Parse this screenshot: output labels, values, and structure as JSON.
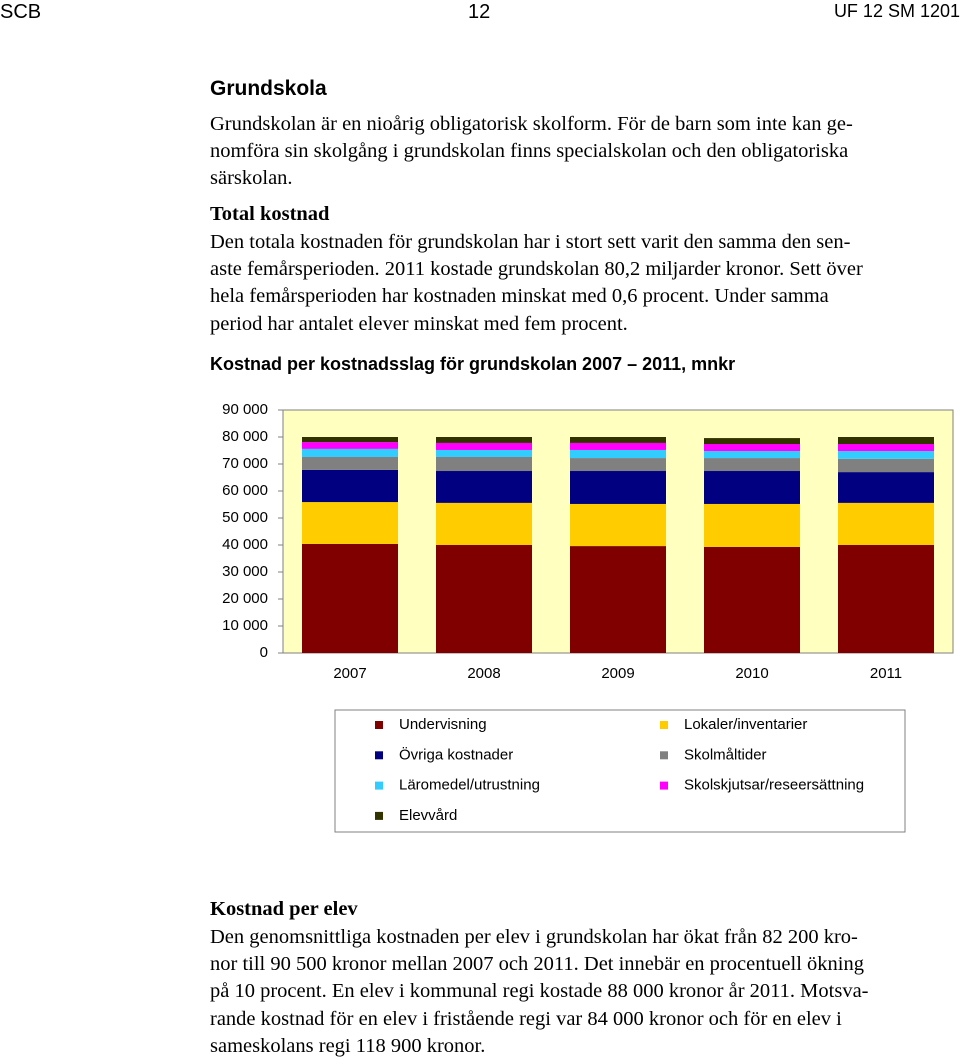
{
  "header": {
    "left": "SCB",
    "center": "12",
    "right": "UF 12 SM 1201"
  },
  "sections": [
    {
      "heading": "Grundskola",
      "lines": [
        "Grundskolan är en nioårig obligatorisk skolform. För de barn som inte kan ge-",
        "nomföra sin skolgång i grundskolan finns specialskolan och den obligatoriska",
        "särskolan."
      ]
    },
    {
      "heading": "Total kostnad",
      "lines": [
        "Den totala kostnaden för grundskolan har i stort sett varit den samma den sen-",
        "aste femårsperioden. 2011 kostade grundskolan 80,2 miljarder kronor. Sett över",
        "hela femårsperioden har kostnaden minskat med 0,6 procent. Under samma",
        "period har antalet elever minskat med fem procent."
      ]
    },
    {
      "heading": "Kostnad per elev",
      "lines": [
        "Den genomsnittliga kostnaden per elev i grundskolan har ökat från 82 200 kro-",
        "nor till 90 500 kronor mellan 2007 och 2011. Det innebär en procentuell ökning",
        "på 10 procent. En elev i kommunal regi kostade 88 000 kronor år 2011. Motsva-",
        "rande kostnad för en elev i fristående regi var 84 000 kronor och för en elev i",
        "sameskolans regi 118 900 kronor."
      ]
    }
  ],
  "chart_data": {
    "type": "stacked_bar",
    "title": "Kostnad per kostnadsslag för grundskolan 2007 – 2011, mnkr",
    "categories": [
      "2007",
      "2008",
      "2009",
      "2010",
      "2011"
    ],
    "series": [
      {
        "name": "Undervisning",
        "color": "#800000",
        "values": [
          40400,
          40000,
          39600,
          39300,
          40000
        ]
      },
      {
        "name": "Lokaler/inventarier",
        "color": "#ffcc00",
        "values": [
          15500,
          15600,
          15600,
          15900,
          15600
        ]
      },
      {
        "name": "Övriga kostnader",
        "color": "#000080",
        "values": [
          11900,
          11800,
          12200,
          12200,
          11400
        ]
      },
      {
        "name": "Skolmåltider",
        "color": "#808080",
        "values": [
          4800,
          5200,
          4800,
          4800,
          4900
        ]
      },
      {
        "name": "Läromedel/utrustning",
        "color": "#33ccff",
        "values": [
          3000,
          2600,
          3000,
          2600,
          2900
        ]
      },
      {
        "name": "Skolskjutsar/reseersättning",
        "color": "#ff00ff",
        "values": [
          2500,
          2600,
          2600,
          2600,
          2600
        ]
      },
      {
        "name": "Elevvård",
        "color": "#333300",
        "values": [
          1900,
          2200,
          2200,
          2200,
          2600
        ]
      }
    ],
    "ylim": [
      0,
      90000
    ],
    "yticks": [
      0,
      {
        "value": 10000,
        "label": "10 000"
      },
      {
        "value": 20000,
        "label": "20 000"
      },
      {
        "value": 30000,
        "label": "30 000"
      },
      {
        "value": 40000,
        "label": "40 000"
      },
      {
        "value": 50000,
        "label": "50 000"
      },
      {
        "value": 60000,
        "label": "60 000"
      },
      {
        "value": 70000,
        "label": "70 000"
      },
      {
        "value": 80000,
        "label": "80 000"
      },
      {
        "value": 90000,
        "label": "90 000"
      }
    ],
    "grid": false,
    "plot_background": "#ffffc0"
  }
}
